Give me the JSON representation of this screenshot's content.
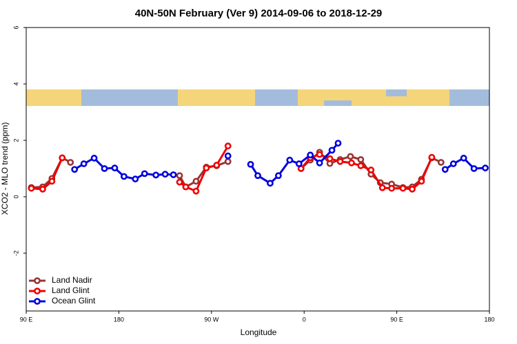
{
  "chart_data": {
    "type": "line",
    "title": "40N-50N February (Ver 9)   2014-09-06 to 2018-12-29",
    "x_label": "Longitude",
    "y_label": "XCO2 - MLO trend (ppm)",
    "xlim": [
      -270,
      180
    ],
    "xticks": [
      {
        "value": -270,
        "label": "90 E"
      },
      {
        "value": -180,
        "label": "180"
      },
      {
        "value": -90,
        "label": "90 W"
      },
      0,
      {
        "value": 90,
        "label": "90 E"
      },
      180
    ],
    "ylim": [
      -4,
      6
    ],
    "yticks": [
      -2,
      0,
      2,
      4,
      6
    ],
    "legend": "bottom-left",
    "series": [
      {
        "name": "Land Nadir",
        "color": "#993333",
        "x": [
          -265,
          -254,
          -245,
          -235,
          -227,
          -174,
          -121,
          -115,
          -105,
          -95,
          -85,
          -74,
          -40,
          -3,
          6,
          15,
          25,
          35,
          45,
          55,
          65,
          74,
          85,
          96,
          105,
          114,
          124,
          133
        ],
        "values": [
          0.33,
          0.35,
          0.65,
          1.38,
          1.22,
          null,
          0.75,
          0.35,
          0.55,
          1.05,
          1.1,
          1.25,
          null,
          1.0,
          1.3,
          1.58,
          1.18,
          1.32,
          1.43,
          1.32,
          0.8,
          0.5,
          0.45,
          0.33,
          0.35,
          0.62,
          1.38,
          1.22
        ]
      },
      {
        "name": "Land Glint",
        "color": "#ee0000",
        "x": [
          -265,
          -254,
          -245,
          -235,
          -178,
          -121,
          -115,
          -105,
          -95,
          -85,
          -74,
          -40,
          -3,
          6,
          15,
          25,
          35,
          46,
          55,
          65,
          76,
          85,
          96,
          105,
          114,
          124
        ],
        "values": [
          0.3,
          0.27,
          0.55,
          1.38,
          null,
          0.52,
          0.35,
          0.2,
          1.02,
          1.12,
          1.8,
          null,
          1.0,
          1.38,
          1.5,
          1.35,
          1.25,
          1.2,
          1.1,
          0.95,
          0.32,
          0.3,
          0.3,
          0.27,
          0.55,
          1.4
        ]
      },
      {
        "name": "Ocean Glint",
        "color": "#0000dd",
        "x": [
          -223,
          -214,
          -204,
          -194,
          -184,
          -175,
          -164,
          -155,
          -144,
          -135,
          -127,
          -100,
          -74,
          -63,
          -52,
          -45,
          -33,
          -25,
          -14,
          -5,
          6,
          15,
          27,
          33,
          85,
          137,
          145,
          155,
          165,
          176
        ],
        "values": [
          0.97,
          1.17,
          1.37,
          1.0,
          1.02,
          0.72,
          0.63,
          0.82,
          0.77,
          0.8,
          0.78,
          null,
          1.45,
          null,
          1.15,
          0.75,
          0.48,
          0.75,
          1.3,
          1.17,
          1.48,
          1.2,
          1.65,
          1.9,
          null,
          0.97,
          1.17,
          1.37,
          1.0,
          1.02
        ]
      }
    ]
  }
}
